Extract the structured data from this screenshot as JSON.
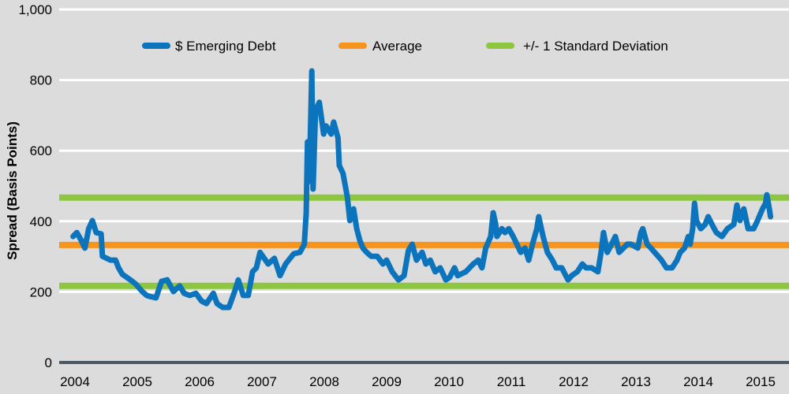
{
  "chart_data": {
    "type": "line",
    "title": "",
    "xlabel": "",
    "ylabel": "Spread (Basis Points)",
    "ylim": [
      0,
      1000
    ],
    "yticks": [
      "0",
      "200",
      "400",
      "600",
      "800",
      "1,000"
    ],
    "ytick_values": [
      0,
      200,
      400,
      600,
      800,
      1000
    ],
    "xticks": [
      "2004",
      "2005",
      "2006",
      "2007",
      "2008",
      "2009",
      "2010",
      "2011",
      "2012",
      "2013",
      "2014",
      "2015"
    ],
    "xlim": [
      2003.75,
      2015.35
    ],
    "grid": "horizontal",
    "legend_position": "top",
    "series": [
      {
        "name": "$ Emerging Debt",
        "color": "#0b74bd",
        "x": [
          2003.97,
          2004.03,
          2004.1,
          2004.16,
          2004.22,
          2004.28,
          2004.34,
          2004.42,
          2004.44,
          2004.57,
          2004.65,
          2004.7,
          2004.76,
          2004.89,
          2004.97,
          2005.08,
          2005.15,
          2005.2,
          2005.3,
          2005.39,
          2005.48,
          2005.58,
          2005.68,
          2005.75,
          2005.84,
          2005.94,
          2006.03,
          2006.11,
          2006.22,
          2006.28,
          2006.37,
          2006.47,
          2006.57,
          2006.62,
          2006.7,
          2006.78,
          2006.85,
          2006.91,
          2006.97,
          2007.1,
          2007.2,
          2007.29,
          2007.38,
          2007.51,
          2007.61,
          2007.68,
          2007.71,
          2007.73,
          2007.76,
          2007.8,
          2007.82,
          2007.86,
          2007.92,
          2007.99,
          2008.03,
          2008.11,
          2008.15,
          2008.22,
          2008.24,
          2008.3,
          2008.37,
          2008.41,
          2008.47,
          2008.52,
          2008.57,
          2008.62,
          2008.68,
          2008.75,
          2008.85,
          2008.94,
          2009.0,
          2009.09,
          2009.19,
          2009.28,
          2009.35,
          2009.41,
          2009.48,
          2009.57,
          2009.63,
          2009.7,
          2009.78,
          2009.86,
          2009.95,
          2010.01,
          2010.09,
          2010.14,
          2010.27,
          2010.39,
          2010.47,
          2010.53,
          2010.59,
          2010.67,
          2010.71,
          2010.75,
          2010.77,
          2010.85,
          2010.9,
          2010.96,
          2011.03,
          2011.09,
          2011.15,
          2011.22,
          2011.28,
          2011.34,
          2011.41,
          2011.44,
          2011.51,
          2011.58,
          2011.66,
          2011.72,
          2011.81,
          2011.91,
          2011.97,
          2012.06,
          2012.14,
          2012.2,
          2012.29,
          2012.39,
          2012.44,
          2012.48,
          2012.54,
          2012.61,
          2012.67,
          2012.73,
          2012.8,
          2012.86,
          2012.92,
          2013.03,
          2013.08,
          2013.11,
          2013.18,
          2013.24,
          2013.3,
          2013.41,
          2013.49,
          2013.58,
          2013.66,
          2013.71,
          2013.78,
          2013.84,
          2013.87,
          2013.91,
          2013.94,
          2013.97,
          2014.04,
          2014.11,
          2014.16,
          2014.22,
          2014.29,
          2014.38,
          2014.47,
          2014.57,
          2014.62,
          2014.67,
          2014.73,
          2014.8,
          2014.89,
          2014.95,
          2015.03,
          2015.08,
          2015.1,
          2015.14,
          2015.16
        ],
        "values": [
          357,
          368,
          346,
          324,
          379,
          402,
          368,
          364,
          301,
          290,
          290,
          268,
          250,
          234,
          223,
          201,
          190,
          187,
          183,
          230,
          234,
          201,
          217,
          196,
          190,
          196,
          174,
          167,
          196,
          167,
          156,
          156,
          205,
          234,
          190,
          190,
          257,
          268,
          312,
          279,
          295,
          246,
          279,
          308,
          312,
          335,
          424,
          625,
          513,
          826,
          491,
          714,
          737,
          647,
          670,
          647,
          681,
          636,
          558,
          536,
          469,
          402,
          435,
          379,
          346,
          324,
          312,
          301,
          301,
          279,
          290,
          257,
          234,
          246,
          317,
          335,
          290,
          312,
          279,
          290,
          257,
          268,
          234,
          241,
          268,
          246,
          257,
          279,
          290,
          268,
          324,
          357,
          424,
          391,
          357,
          379,
          368,
          379,
          357,
          335,
          312,
          324,
          290,
          335,
          379,
          413,
          357,
          312,
          290,
          268,
          268,
          234,
          246,
          257,
          279,
          268,
          268,
          257,
          312,
          368,
          312,
          335,
          357,
          312,
          324,
          335,
          335,
          324,
          368,
          379,
          335,
          324,
          312,
          290,
          268,
          268,
          290,
          312,
          324,
          357,
          335,
          379,
          451,
          402,
          379,
          391,
          413,
          391,
          368,
          357,
          379,
          391,
          446,
          402,
          435,
          379,
          379,
          402,
          435,
          451,
          475,
          435,
          413
        ]
      },
      {
        "name": "Average",
        "color": "#f7941d",
        "value": 333
      },
      {
        "name": "+/- 1 Standard Deviation",
        "color": "#8dc63f",
        "upper": 467,
        "lower": 217
      }
    ]
  },
  "colors": {
    "background": "#dcdcdc",
    "grid": "#ffffff",
    "baseline": "#4d5a64"
  }
}
